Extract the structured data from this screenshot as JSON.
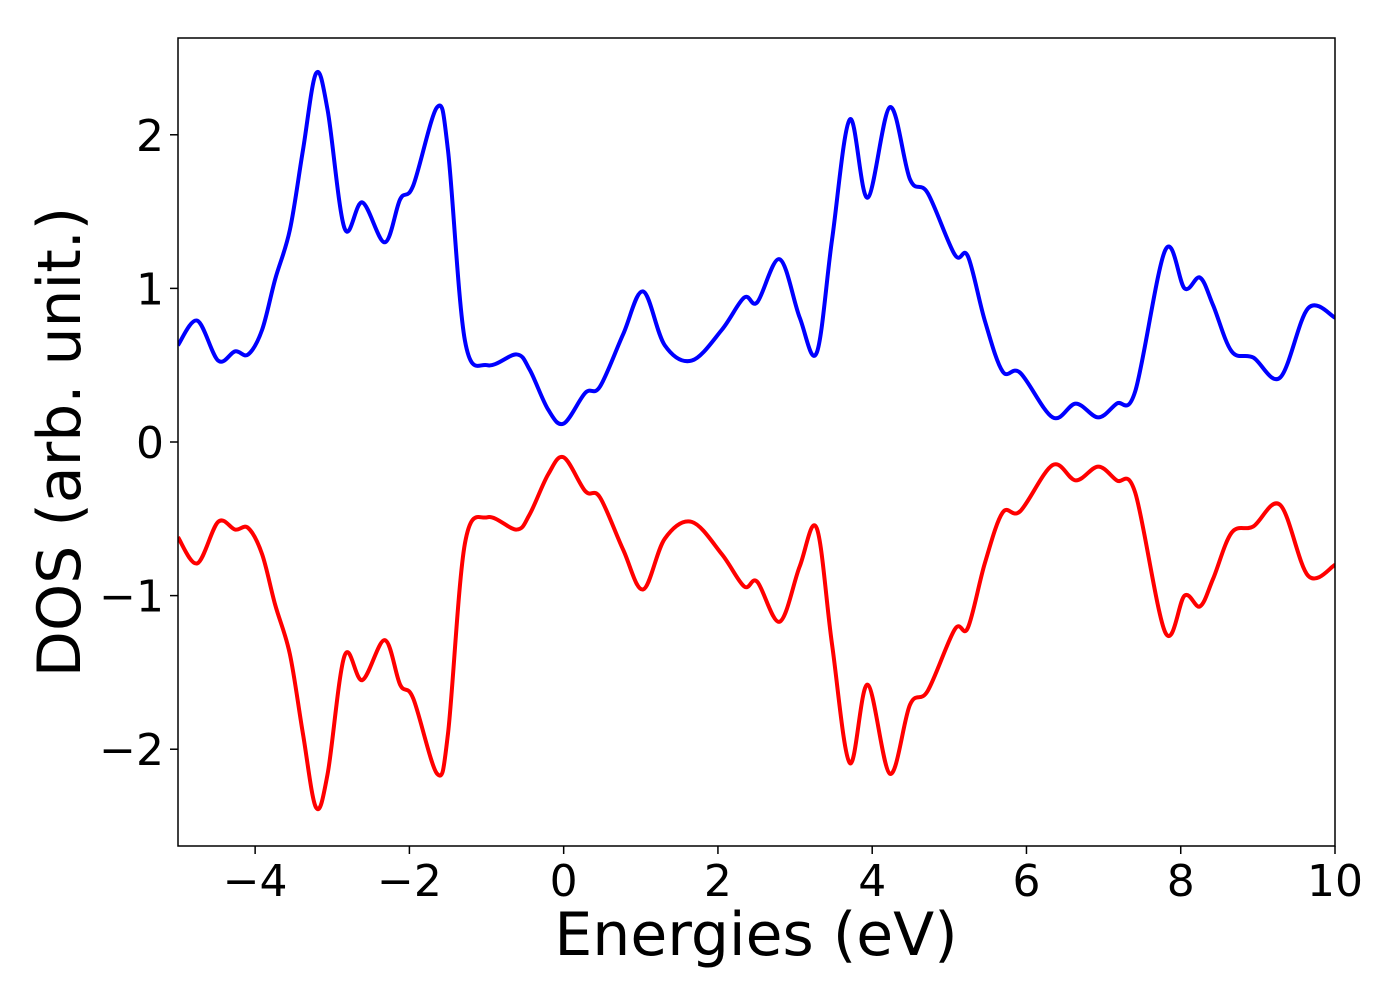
{
  "chart_data": {
    "type": "line",
    "xlabel": "Energies (eV)",
    "ylabel": "DOS (arb. unit.)",
    "x": [
      -5,
      -4.75,
      -4.48,
      -4.26,
      -4.09,
      -3.91,
      -3.74,
      -3.55,
      -3.38,
      -3.21,
      -3.06,
      -2.84,
      -2.61,
      -2.32,
      -2.12,
      -1.95,
      -1.64,
      -1.5,
      -1.28,
      -0.99,
      -0.61,
      -0.44,
      -0.2,
      0,
      0.28,
      0.47,
      0.77,
      1.03,
      1.31,
      1.66,
      2.05,
      2.34,
      2.51,
      2.8,
      3.06,
      3.28,
      3.48,
      3.71,
      3.94,
      4.23,
      4.49,
      4.72,
      5.07,
      5.24,
      5.46,
      5.69,
      5.92,
      6.34,
      6.64,
      6.93,
      7.17,
      7.41,
      7.8,
      8.05,
      8.25,
      8.42,
      8.66,
      8.94,
      9.29,
      9.65,
      10
    ],
    "series": [
      {
        "color": "#0000ff",
        "values": [
          0.63,
          0.79,
          0.53,
          0.59,
          0.57,
          0.73,
          1.06,
          1.38,
          1.9,
          2.4,
          2.16,
          1.39,
          1.56,
          1.3,
          1.58,
          1.67,
          2.18,
          1.9,
          0.66,
          0.5,
          0.57,
          0.47,
          0.21,
          0.12,
          0.32,
          0.36,
          0.7,
          0.98,
          0.63,
          0.53,
          0.73,
          0.94,
          0.91,
          1.19,
          0.81,
          0.58,
          1.32,
          2.1,
          1.59,
          2.18,
          1.71,
          1.62,
          1.22,
          1.21,
          0.79,
          0.46,
          0.45,
          0.16,
          0.25,
          0.16,
          0.25,
          0.33,
          1.25,
          1.0,
          1.07,
          0.89,
          0.59,
          0.55,
          0.42,
          0.87,
          0.81
        ]
      },
      {
        "color": "#ff0000",
        "values": [
          -0.62,
          -0.79,
          -0.52,
          -0.57,
          -0.56,
          -0.73,
          -1.06,
          -1.38,
          -1.9,
          -2.38,
          -2.16,
          -1.39,
          -1.55,
          -1.29,
          -1.58,
          -1.67,
          -2.16,
          -1.9,
          -0.66,
          -0.49,
          -0.57,
          -0.47,
          -0.21,
          -0.1,
          -0.32,
          -0.36,
          -0.7,
          -0.96,
          -0.63,
          -0.52,
          -0.73,
          -0.94,
          -0.91,
          -1.17,
          -0.81,
          -0.56,
          -1.32,
          -2.09,
          -1.58,
          -2.16,
          -1.71,
          -1.62,
          -1.22,
          -1.21,
          -0.79,
          -0.46,
          -0.45,
          -0.15,
          -0.25,
          -0.16,
          -0.25,
          -0.33,
          -1.24,
          -1.0,
          -1.07,
          -0.89,
          -0.59,
          -0.55,
          -0.41,
          -0.87,
          -0.8
        ]
      }
    ],
    "xlim": [
      -5,
      10
    ],
    "ylim": [
      -2.63,
      2.63
    ],
    "xticks": [
      {
        "value": -4,
        "label": "−4"
      },
      {
        "value": -2,
        "label": "−2"
      },
      0,
      2,
      4,
      6,
      8,
      10
    ],
    "yticks": [
      {
        "value": -2,
        "label": "−2"
      },
      {
        "value": -1,
        "label": "−1"
      },
      0,
      1,
      2
    ],
    "grid": false
  }
}
